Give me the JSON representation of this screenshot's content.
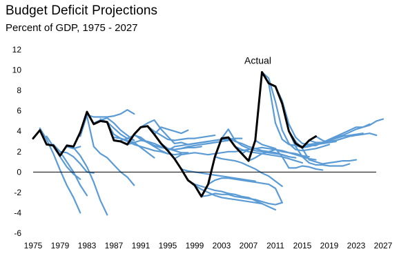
{
  "chart_data": {
    "type": "line",
    "title": "Budget Deficit Projections",
    "subtitle": "Percent of GDP, 1975 - 2027",
    "xlabel": "",
    "ylabel": "",
    "xlim": [
      1975,
      2027
    ],
    "ylim": [
      -6,
      12
    ],
    "x_ticks": [
      1975,
      1979,
      1983,
      1987,
      1991,
      1995,
      1999,
      2003,
      2007,
      2011,
      2015,
      2019,
      2023,
      2027
    ],
    "y_ticks": [
      -6,
      -4,
      -2,
      0,
      2,
      4,
      6,
      8,
      10,
      12
    ],
    "grid": false,
    "zero_line": true,
    "colors": {
      "actual": "#000000",
      "projection": "#5B9BD5",
      "zero_line": "#000000"
    },
    "annotations": [
      {
        "text": "Actual",
        "x": 2009,
        "y": 10.4
      }
    ],
    "series": [
      {
        "role": "actual",
        "x": [
          1975,
          1976,
          1977,
          1978,
          1979,
          1980,
          1981,
          1982,
          1983,
          1984,
          1985,
          1986,
          1987,
          1988,
          1989,
          1990,
          1991,
          1992,
          1993,
          1994,
          1995,
          1996,
          1997,
          1998,
          1999,
          2000,
          2001,
          2002,
          2003,
          2004,
          2005,
          2006,
          2007,
          2008,
          2009,
          2010,
          2011,
          2012,
          2013,
          2014,
          2015,
          2016,
          2017
        ],
        "y": [
          3.3,
          4.1,
          2.7,
          2.6,
          1.6,
          2.6,
          2.5,
          3.9,
          5.9,
          4.7,
          5,
          4.9,
          3.1,
          3,
          2.7,
          3.7,
          4.4,
          4.5,
          3.7,
          2.8,
          2.1,
          1.3,
          0.3,
          -0.8,
          -1.3,
          -2.4,
          -1.2,
          1.5,
          3.3,
          3.4,
          2.5,
          1.8,
          1.1,
          3.1,
          9.8,
          8.7,
          8.4,
          6.7,
          4,
          2.8,
          2.4,
          3.1,
          3.5
        ]
      },
      {
        "role": "projection",
        "x": [
          1976,
          1977,
          1978,
          1979,
          1980,
          1981,
          1982
        ],
        "y": [
          4.3,
          3.2,
          1.8,
          0.2,
          -1.3,
          -2.5,
          -4
        ]
      },
      {
        "role": "projection",
        "x": [
          1977,
          1978,
          1979,
          1980,
          1981,
          1982
        ],
        "y": [
          3.5,
          2.5,
          1.5,
          0.5,
          -0.2,
          -0.7
        ]
      },
      {
        "role": "projection",
        "x": [
          1978,
          1979,
          1980,
          1981,
          1982,
          1983
        ],
        "y": [
          2.7,
          2,
          1,
          0,
          -1.3,
          -2.3
        ]
      },
      {
        "role": "projection",
        "x": [
          1979,
          1980,
          1981,
          1982,
          1983,
          1984
        ],
        "y": [
          2,
          1.9,
          1.5,
          0.8,
          0,
          -0.1
        ]
      },
      {
        "role": "projection",
        "x": [
          1980,
          1981,
          1982
        ],
        "y": [
          2.5,
          2.3,
          2.5
        ]
      },
      {
        "role": "projection",
        "x": [
          1981,
          1982,
          1983,
          1984,
          1985,
          1986
        ],
        "y": [
          2.4,
          1.6,
          0.5,
          -1,
          -2.8,
          -4.2
        ]
      },
      {
        "role": "projection",
        "x": [
          1982,
          1983,
          1984,
          1985,
          1986,
          1987,
          1988,
          1989,
          1990
        ],
        "y": [
          3.5,
          5.6,
          5.4,
          5.4,
          5.4,
          5.5,
          5.7,
          6.1,
          5.7
        ]
      },
      {
        "role": "projection",
        "x": [
          1983,
          1984,
          1985,
          1986,
          1987,
          1988,
          1989,
          1990
        ],
        "y": [
          5.5,
          2.5,
          1.8,
          1.4,
          0.7,
          0,
          -0.5,
          -1.3
        ]
      },
      {
        "role": "projection",
        "x": [
          1984,
          1985,
          1986,
          1987,
          1988,
          1989,
          1990
        ],
        "y": [
          4.8,
          5.1,
          5.3,
          4.8,
          4.1,
          3.6,
          3.1
        ]
      },
      {
        "role": "projection",
        "x": [
          1985,
          1986,
          1987,
          1988,
          1989,
          1990
        ],
        "y": [
          5.2,
          4.9,
          4.3,
          3.7,
          3.3,
          3.1
        ]
      },
      {
        "role": "projection",
        "x": [
          1986,
          1987,
          1988,
          1989,
          1990,
          1991,
          1992,
          1993,
          1994,
          1995
        ],
        "y": [
          4.8,
          3.7,
          3.3,
          3,
          2.7,
          2.5,
          2.3,
          2.1,
          2,
          1.8
        ]
      },
      {
        "role": "projection",
        "x": [
          1987,
          1988,
          1989,
          1990,
          1991,
          1992,
          1993
        ],
        "y": [
          3.4,
          3.3,
          3.1,
          2.9,
          2.4,
          1.9,
          1.4
        ]
      },
      {
        "role": "projection",
        "x": [
          1988,
          1989,
          1990,
          1991,
          1992,
          1993,
          1994,
          1995,
          1996,
          1997
        ],
        "y": [
          3.1,
          3.3,
          3.6,
          3.4,
          2.9,
          2.5,
          2.1,
          1.8,
          1.7,
          1.8
        ]
      },
      {
        "role": "projection",
        "x": [
          1989,
          1990,
          1991,
          1992,
          1993,
          1994,
          1995,
          1996,
          1997,
          1998
        ],
        "y": [
          2.7,
          2.9,
          3.1,
          3,
          2.8,
          2.5,
          2.3,
          2.1,
          1.9,
          1.9
        ]
      },
      {
        "role": "projection",
        "x": [
          1990,
          1991,
          1992,
          1993,
          1994,
          1995,
          1996,
          1997,
          1998,
          1999,
          2000
        ],
        "y": [
          3.7,
          3.2,
          2.9,
          2.6,
          2.4,
          2.3,
          2.2,
          2.3,
          2.4,
          2.4,
          2.5
        ]
      },
      {
        "role": "projection",
        "x": [
          1991,
          1992,
          1993,
          1994,
          1995,
          1996,
          1997,
          1998,
          1999,
          2000,
          2001
        ],
        "y": [
          4.4,
          4.8,
          5.1,
          4.2,
          3.5,
          2.8,
          2.9,
          2.7,
          2.8,
          2.9,
          3
        ]
      },
      {
        "role": "projection",
        "x": [
          1992,
          1993,
          1994,
          1995,
          1996,
          1997,
          1998,
          1999,
          2000,
          2001,
          2002
        ],
        "y": [
          4.5,
          4,
          3.6,
          3.2,
          3.1,
          3.2,
          3.3,
          3.3,
          3.4,
          3.5,
          3.6
        ]
      },
      {
        "role": "projection",
        "x": [
          1993,
          1994,
          1995,
          1996,
          1997,
          1998
        ],
        "y": [
          3.7,
          4.4,
          4.2,
          4,
          3.8,
          4.1
        ]
      },
      {
        "role": "projection",
        "x": [
          1994,
          1995,
          1996,
          1997,
          1998,
          1999,
          2000,
          2001,
          2002,
          2003,
          2004,
          2005
        ],
        "y": [
          2.8,
          2.3,
          2.2,
          2.3,
          2.5,
          2.6,
          2.7,
          2.8,
          2.9,
          3,
          3.1,
          3.2
        ]
      },
      {
        "role": "projection",
        "x": [
          1995,
          1996,
          1997,
          1998,
          1999,
          2000,
          2001,
          2002,
          2003,
          2004,
          2005,
          2006
        ],
        "y": [
          2.1,
          2.5,
          2.6,
          2.7,
          2.8,
          2.9,
          3,
          3.1,
          3.2,
          3.2,
          3.3,
          3.3
        ]
      },
      {
        "role": "projection",
        "x": [
          1996,
          1997,
          1998,
          1999,
          2000,
          2001,
          2002,
          2003,
          2004,
          2005,
          2006,
          2007
        ],
        "y": [
          1.3,
          1.7,
          1.8,
          1.9,
          1.8,
          1.7,
          1.8,
          1.9,
          2,
          2,
          2.1,
          2.2
        ]
      },
      {
        "role": "projection",
        "x": [
          1997,
          1998,
          1999,
          2000,
          2001,
          2002,
          2003,
          2004,
          2005,
          2006,
          2007,
          2008
        ],
        "y": [
          0.3,
          0.1,
          0,
          -0.1,
          -0.2,
          -0.3,
          -0.4,
          -0.5,
          -0.6,
          -0.7,
          -0.8,
          -0.9
        ]
      },
      {
        "role": "projection",
        "x": [
          1998,
          1999,
          2000,
          2001,
          2002,
          2003,
          2004,
          2005,
          2006,
          2007,
          2008,
          2009
        ],
        "y": [
          -0.8,
          -1.2,
          -1.4,
          -1.6,
          -1.8,
          -1.9,
          -2.1,
          -2.2,
          -2.4,
          -2.5,
          -2.8,
          -3.1
        ]
      },
      {
        "role": "projection",
        "x": [
          1999,
          2000,
          2001,
          2002,
          2003,
          2004,
          2005,
          2006,
          2007,
          2008,
          2009,
          2010,
          2011
        ],
        "y": [
          -1.3,
          -1.7,
          -2,
          -2.3,
          -2.5,
          -2.6,
          -2.7,
          -2.8,
          -2.9,
          -3,
          -3.1,
          -3.4,
          -3.7
        ]
      },
      {
        "role": "projection",
        "x": [
          2000,
          2001,
          2002,
          2003,
          2004,
          2005,
          2006,
          2007,
          2008,
          2009,
          2010,
          2011,
          2012
        ],
        "y": [
          -2.4,
          -2.3,
          -2.1,
          -2.2,
          -2.2,
          -2.4,
          -2.5,
          -2.6,
          -2.7,
          -2.9,
          -3.1,
          -3.2,
          -3
        ]
      },
      {
        "role": "projection",
        "x": [
          2001,
          2002,
          2003,
          2004,
          2005,
          2006,
          2007,
          2008,
          2009,
          2010,
          2011,
          2012
        ],
        "y": [
          -1.2,
          -0.8,
          -0.6,
          -0.6,
          -0.7,
          -0.8,
          -0.9,
          -1,
          -1.1,
          -1.2,
          -1.6,
          -3
        ]
      },
      {
        "role": "projection",
        "x": [
          2002,
          2003,
          2004,
          2005,
          2006,
          2007,
          2008,
          2009,
          2010,
          2011,
          2012
        ],
        "y": [
          1.5,
          1.3,
          1.2,
          1.1,
          0.9,
          0.6,
          0.3,
          -0.1,
          -0.4,
          -0.9,
          -1.4
        ]
      },
      {
        "role": "projection",
        "x": [
          2003,
          2004,
          2005,
          2006,
          2007,
          2008,
          2009,
          2010,
          2011,
          2012,
          2013
        ],
        "y": [
          3.3,
          4.2,
          3.1,
          2.6,
          2.3,
          2.1,
          2,
          1.9,
          1.8,
          1.7,
          1.5
        ]
      },
      {
        "role": "projection",
        "x": [
          2004,
          2005,
          2006,
          2007,
          2008,
          2009,
          2010,
          2011,
          2012,
          2013,
          2014
        ],
        "y": [
          3.4,
          3,
          2.8,
          2.5,
          2.3,
          2.1,
          2,
          1.9,
          1.7,
          1.5,
          1.4
        ]
      },
      {
        "role": "projection",
        "x": [
          2005,
          2006,
          2007,
          2008,
          2009,
          2010,
          2011,
          2012,
          2013,
          2014,
          2015
        ],
        "y": [
          2.5,
          2.2,
          2,
          1.9,
          1.8,
          1.7,
          1.6,
          1.5,
          1.3,
          1.1,
          0.9
        ]
      },
      {
        "role": "projection",
        "x": [
          2006,
          2007,
          2008,
          2009,
          2010,
          2011,
          2012,
          2013,
          2014,
          2015,
          2016
        ],
        "y": [
          1.8,
          2.2,
          2.3,
          2.4,
          2.3,
          2.2,
          2,
          1.9,
          1.8,
          1.6,
          1.5
        ]
      },
      {
        "role": "projection",
        "x": [
          2007,
          2008,
          2009,
          2010,
          2011,
          2012,
          2013,
          2014,
          2015,
          2016,
          2017
        ],
        "y": [
          1.1,
          1.4,
          1.8,
          2,
          2.2,
          2.1,
          1.9,
          1.7,
          1.5,
          1.3,
          1.2
        ]
      },
      {
        "role": "projection",
        "x": [
          2008,
          2009,
          2010,
          2011,
          2012,
          2013,
          2014,
          2015,
          2016,
          2017,
          2018
        ],
        "y": [
          3.1,
          2.7,
          2.5,
          2.3,
          1.5,
          0.4,
          0.4,
          0.6,
          0.5,
          0.3,
          0.2
        ]
      },
      {
        "role": "projection",
        "x": [
          2009,
          2010,
          2011,
          2012,
          2013,
          2014,
          2015,
          2016,
          2017,
          2018,
          2019
        ],
        "y": [
          9.8,
          9.2,
          6.9,
          4.1,
          2.8,
          2.2,
          2.1,
          2.2,
          2.3,
          2.5,
          2.7
        ]
      },
      {
        "role": "projection",
        "x": [
          2010,
          2011,
          2012,
          2013,
          2014,
          2015,
          2016,
          2017,
          2018,
          2019,
          2020
        ],
        "y": [
          8.7,
          4.8,
          3.2,
          2.7,
          2.6,
          2.4,
          2.5,
          2.7,
          2.8,
          2.9,
          3
        ]
      },
      {
        "role": "projection",
        "x": [
          2011,
          2012,
          2013,
          2014,
          2015,
          2016,
          2017,
          2018,
          2019,
          2020,
          2021
        ],
        "y": [
          8.4,
          7,
          4.7,
          3.4,
          2.8,
          2.7,
          2.8,
          2.9,
          3,
          3.1,
          3.3
        ]
      },
      {
        "role": "projection",
        "x": [
          2012,
          2013,
          2014,
          2015,
          2016,
          2017,
          2018,
          2019,
          2020,
          2021,
          2022
        ],
        "y": [
          6.7,
          4,
          2.5,
          1.5,
          0.9,
          0.7,
          0.7,
          0.6,
          0.6,
          0.6,
          0.8
        ]
      },
      {
        "role": "projection",
        "x": [
          2013,
          2014,
          2015,
          2016,
          2017,
          2018,
          2019,
          2020,
          2021,
          2022,
          2023
        ],
        "y": [
          4,
          3,
          2.3,
          1.2,
          1,
          0.8,
          0.9,
          1,
          1.1,
          1.1,
          1.2
        ]
      },
      {
        "role": "projection",
        "x": [
          2014,
          2015,
          2016,
          2017,
          2018,
          2019,
          2020,
          2021,
          2022,
          2023,
          2024
        ],
        "y": [
          2.8,
          2.5,
          2.6,
          2.6,
          2.9,
          3.1,
          3.3,
          3.5,
          3.6,
          3.7,
          3.8
        ]
      },
      {
        "role": "projection",
        "x": [
          2015,
          2016,
          2017,
          2018,
          2019,
          2020,
          2021,
          2022,
          2023,
          2024,
          2025
        ],
        "y": [
          2.4,
          2.6,
          2.7,
          2.9,
          3.1,
          3.4,
          3.6,
          3.9,
          4.2,
          4.4,
          4.7
        ]
      },
      {
        "role": "projection",
        "x": [
          2016,
          2017,
          2018,
          2019,
          2020,
          2021,
          2022,
          2023,
          2024,
          2025,
          2026,
          2027
        ],
        "y": [
          3.1,
          2.9,
          2.9,
          3.2,
          3.5,
          3.8,
          4.1,
          4.4,
          4.4,
          4.6,
          5,
          5.2
        ]
      },
      {
        "role": "projection",
        "x": [
          2017,
          2018,
          2019,
          2020,
          2021,
          2022,
          2023,
          2024,
          2025,
          2026
        ],
        "y": [
          3.5,
          3.1,
          2.9,
          3.1,
          3.3,
          3.5,
          3.6,
          3.7,
          3.8,
          3.6
        ]
      }
    ]
  }
}
